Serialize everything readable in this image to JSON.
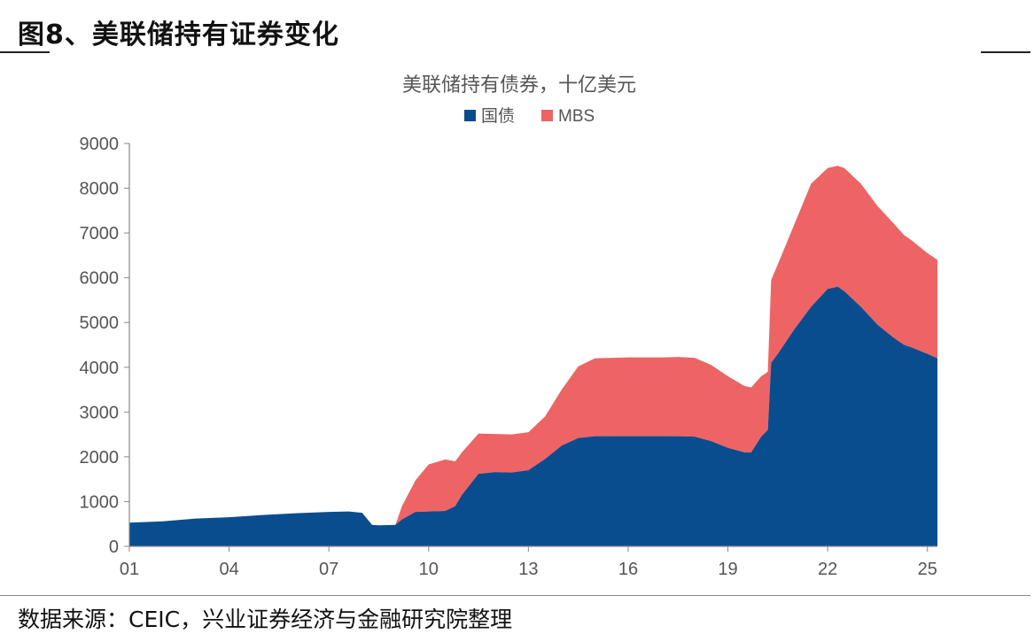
{
  "figure": {
    "title": "图8、美联储持有证券变化",
    "source": "数据来源：CEIC，兴业证券经济与金融研究院整理"
  },
  "colors": {
    "treasury": "#0a4d8f",
    "mbs": "#ee6464",
    "axis": "#888888",
    "tick_text": "#555555"
  },
  "chart_data": {
    "type": "area",
    "stacked": true,
    "title": "美联储持有债券，十亿美元",
    "legend_position": "top-center",
    "grid": false,
    "xlabel": "",
    "ylabel": "",
    "xlim": [
      2001.0,
      2025.3
    ],
    "ylim": [
      0,
      9000
    ],
    "x_tick_values": [
      2001,
      2004,
      2007,
      2010,
      2013,
      2016,
      2019,
      2022,
      2025
    ],
    "x_tick_labels": [
      "01",
      "04",
      "07",
      "10",
      "13",
      "16",
      "19",
      "22",
      "25"
    ],
    "y_ticks": [
      0,
      1000,
      2000,
      3000,
      4000,
      5000,
      6000,
      7000,
      8000,
      9000
    ],
    "x": [
      2001.0,
      2002.0,
      2003.0,
      2004.0,
      2005.0,
      2006.0,
      2007.0,
      2007.6,
      2008.0,
      2008.3,
      2008.5,
      2009.0,
      2009.2,
      2009.6,
      2010.0,
      2010.5,
      2010.8,
      2011.0,
      2011.5,
      2012.0,
      2012.5,
      2013.0,
      2013.5,
      2014.0,
      2014.5,
      2015.0,
      2016.0,
      2017.0,
      2017.5,
      2018.0,
      2018.5,
      2019.0,
      2019.5,
      2019.7,
      2020.0,
      2020.2,
      2020.3,
      2020.5,
      2021.0,
      2021.5,
      2022.0,
      2022.3,
      2022.5,
      2023.0,
      2023.5,
      2024.0,
      2024.3,
      2024.5,
      2025.0,
      2025.3
    ],
    "series": [
      {
        "name": "国债",
        "values": [
          530,
          560,
          620,
          650,
          700,
          740,
          770,
          780,
          750,
          480,
          470,
          480,
          600,
          770,
          780,
          790,
          900,
          1150,
          1620,
          1660,
          1650,
          1700,
          1950,
          2250,
          2420,
          2460,
          2460,
          2460,
          2460,
          2450,
          2350,
          2200,
          2100,
          2100,
          2450,
          2600,
          4100,
          4300,
          4850,
          5350,
          5750,
          5800,
          5700,
          5350,
          4950,
          4650,
          4500,
          4450,
          4300,
          4200
        ]
      },
      {
        "name": "MBS",
        "values": [
          0,
          0,
          0,
          0,
          0,
          0,
          0,
          0,
          0,
          0,
          0,
          0,
          300,
          700,
          1050,
          1150,
          1000,
          950,
          900,
          850,
          850,
          850,
          950,
          1250,
          1600,
          1740,
          1760,
          1760,
          1770,
          1760,
          1700,
          1600,
          1480,
          1450,
          1350,
          1300,
          1850,
          2000,
          2350,
          2750,
          2700,
          2700,
          2750,
          2750,
          2650,
          2550,
          2450,
          2400,
          2250,
          2200
        ]
      }
    ]
  }
}
